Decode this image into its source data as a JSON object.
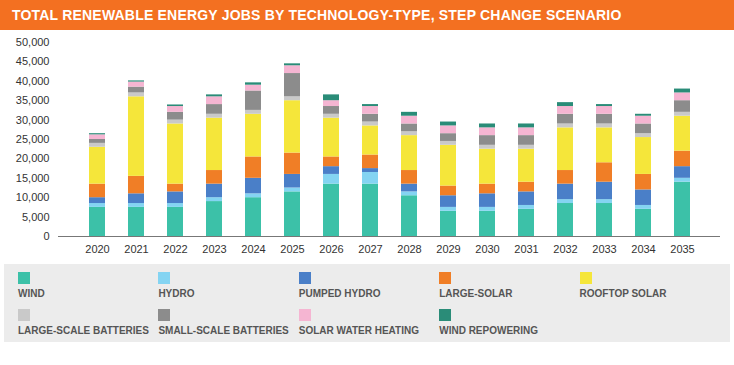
{
  "chart_data": {
    "type": "bar",
    "stacked": true,
    "title": "TOTAL RENEWABLE ENERGY JOBS BY TECHNOLOGY-TYPE, STEP CHANGE SCENARIO",
    "categories": [
      "2020",
      "2021",
      "2022",
      "2023",
      "2024",
      "2025",
      "2026",
      "2027",
      "2028",
      "2029",
      "2030",
      "2031",
      "2032",
      "2033",
      "2034",
      "2035"
    ],
    "ylim": [
      0,
      50000
    ],
    "yticks": [
      0,
      {
        "value": 5000,
        "label": "5,000"
      },
      {
        "value": 10000,
        "label": "10,000"
      },
      {
        "value": 15000,
        "label": "15,000"
      },
      {
        "value": 20000,
        "label": "20,000"
      },
      {
        "value": 25000,
        "label": "25,000"
      },
      {
        "value": 30000,
        "label": "30,000"
      },
      {
        "value": 35000,
        "label": "35,000"
      },
      {
        "value": 40000,
        "label": "40,000"
      },
      {
        "value": 45000,
        "label": "45,000"
      },
      {
        "value": 50000,
        "label": "50,000"
      }
    ],
    "grid": false,
    "legend": "bottom",
    "series": [
      {
        "name": "WIND",
        "color": "#3cc1a8",
        "values": [
          7500,
          7500,
          7500,
          9000,
          10000,
          11500,
          13500,
          13500,
          10500,
          6500,
          6500,
          7000,
          8500,
          8500,
          7000,
          14000
        ]
      },
      {
        "name": "HYDRO",
        "color": "#84d4f2",
        "values": [
          1000,
          1000,
          1000,
          1000,
          1000,
          1000,
          2500,
          3000,
          1000,
          1000,
          1000,
          1000,
          1000,
          1000,
          1000,
          1000
        ]
      },
      {
        "name": "PUMPED HYDRO",
        "color": "#4a7fc8",
        "values": [
          1500,
          2500,
          3000,
          3500,
          4000,
          3500,
          2000,
          1000,
          2000,
          3000,
          3500,
          3500,
          4000,
          4500,
          4000,
          3000
        ]
      },
      {
        "name": "LARGE-SOLAR",
        "color": "#f07e26",
        "values": [
          3500,
          4500,
          2000,
          3500,
          5500,
          5500,
          2500,
          3500,
          3500,
          2500,
          2500,
          2500,
          3500,
          5000,
          4000,
          4000
        ]
      },
      {
        "name": "ROOFTOP SOLAR",
        "color": "#f5e63a",
        "values": [
          9500,
          20500,
          15500,
          13500,
          11000,
          13500,
          10000,
          7500,
          9000,
          10500,
          9000,
          8500,
          11000,
          9000,
          9500,
          9000
        ]
      },
      {
        "name": "LARGE-SCALE BATTERIES",
        "color": "#c9c9c9",
        "values": [
          1000,
          1000,
          1000,
          1000,
          1000,
          1000,
          1000,
          1000,
          1000,
          1000,
          1000,
          1000,
          1000,
          1000,
          1000,
          1000
        ]
      },
      {
        "name": "SMALL-SCALE BATTERIES",
        "color": "#8c8c8c",
        "values": [
          1000,
          1500,
          2000,
          2500,
          5000,
          6000,
          2000,
          2000,
          2000,
          2000,
          2500,
          2500,
          2500,
          2500,
          2500,
          3000
        ]
      },
      {
        "name": "SOLAR WATER HEATING",
        "color": "#f5b5d2",
        "values": [
          1200,
          1300,
          1500,
          2000,
          1500,
          2000,
          1500,
          2000,
          2000,
          2000,
          2000,
          2000,
          2000,
          2000,
          2000,
          2000
        ]
      },
      {
        "name": "WIND REPOWERING",
        "color": "#2a8c78",
        "values": [
          300,
          300,
          400,
          500,
          600,
          500,
          1500,
          500,
          1000,
          1000,
          1000,
          1000,
          1000,
          500,
          500,
          1000
        ]
      }
    ]
  }
}
